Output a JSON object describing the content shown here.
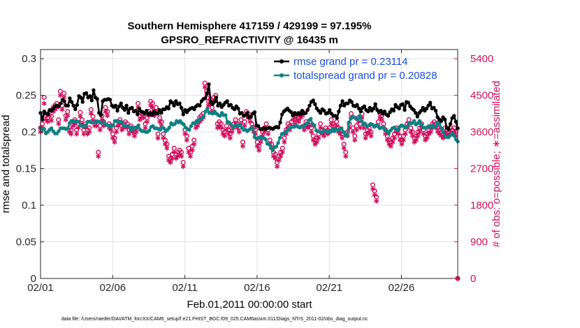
{
  "chart_data": {
    "type": "line",
    "title": "Southern Hemisphere 417159 / 429199 = 97.195%",
    "subtitle": "GPSRO_REFRACTIVITY @ 16435 m",
    "xlabel": "Feb.01,2011 00:00:00 start",
    "ylabel": "rmse and totalspread",
    "y2label": "# of obs: o=possible; ∗=assimilated",
    "footer": "data file: /Users/raeder/DAI/ATM_forcXX/CAM6_setup/f.e21.FHIST_BGC.f09_025.CAM6assim.011/Diags_NTrS_2011-02/obs_diag_output.nc",
    "xlim": [
      1,
      29.9
    ],
    "xticks": [
      1,
      6,
      11,
      16,
      21,
      26
    ],
    "xtick_labels": [
      "02/01",
      "02/06",
      "02/11",
      "02/16",
      "02/21",
      "02/26"
    ],
    "ylim": [
      0,
      0.3125
    ],
    "yticks": [
      0,
      0.05,
      0.1,
      0.15,
      0.2,
      0.25,
      0.3
    ],
    "ytick_labels": [
      "0",
      "0.05",
      "0.1",
      "0.15",
      "0.2",
      "0.25",
      "0.3"
    ],
    "y2lim": [
      0,
      5625
    ],
    "y2ticks": [
      0,
      900,
      1800,
      2700,
      3600,
      4500,
      5400
    ],
    "y2tick_labels": [
      "0",
      "900",
      "1800",
      "2700",
      "3600",
      "4500",
      "5400"
    ],
    "grid": true,
    "legend_position": "top-right",
    "colors": {
      "rmse": "#000000",
      "spread": "#0e8185",
      "obs": "#d0105c",
      "legend_text": "#1a4fe0"
    },
    "series": [
      {
        "name": "rmse grand pr = 0.23114",
        "axis": "left",
        "values": [
          0.226,
          0.217,
          0.228,
          0.225,
          0.224,
          0.23,
          0.229,
          0.232,
          0.235,
          0.236,
          0.235,
          0.239,
          0.244,
          0.242,
          0.236,
          0.236,
          0.246,
          0.241,
          0.236,
          0.231,
          0.237,
          0.249,
          0.247,
          0.241,
          0.252,
          0.253,
          0.247,
          0.249,
          0.243,
          0.257,
          0.247,
          0.245,
          0.226,
          0.223,
          0.242,
          0.244,
          0.244,
          0.245,
          0.244,
          0.236,
          0.234,
          0.236,
          0.229,
          0.235,
          0.239,
          0.233,
          0.23,
          0.236,
          0.226,
          0.232,
          0.233,
          0.228,
          0.229,
          0.224,
          0.232,
          0.228,
          0.227,
          0.225,
          0.229,
          0.224,
          0.226,
          0.223,
          0.228,
          0.225,
          0.225,
          0.23,
          0.226,
          0.231,
          0.231,
          0.234,
          0.232,
          0.242,
          0.24,
          0.236,
          0.242,
          0.238,
          0.239,
          0.233,
          0.224,
          0.23,
          0.227,
          0.23,
          0.232,
          0.233,
          0.231,
          0.235,
          0.237,
          0.236,
          0.242,
          0.245,
          0.246,
          0.253,
          0.265,
          0.241,
          0.238,
          0.241,
          0.247,
          0.236,
          0.239,
          0.234,
          0.237,
          0.24,
          0.242,
          0.236,
          0.237,
          0.233,
          0.231,
          0.235,
          0.232,
          0.225,
          0.226,
          0.222,
          0.223,
          0.226,
          0.22,
          0.221,
          0.225,
          0.227,
          0.209,
          0.208,
          0.204,
          0.204,
          0.205,
          0.204,
          0.205,
          0.206,
          0.205,
          0.204,
          0.206,
          0.207,
          0.206,
          0.213,
          0.224,
          0.228,
          0.23,
          0.232,
          0.229,
          0.227,
          0.223,
          0.226,
          0.224,
          0.226,
          0.224,
          0.229,
          0.225,
          0.226,
          0.23,
          0.236,
          0.241,
          0.243,
          0.238,
          0.232,
          0.229,
          0.226,
          0.231,
          0.229,
          0.225,
          0.226,
          0.23,
          0.225,
          0.222,
          0.222,
          0.219,
          0.228,
          0.236,
          0.242,
          0.236,
          0.239,
          0.239,
          0.243,
          0.241,
          0.236,
          0.235,
          0.237,
          0.232,
          0.228,
          0.233,
          0.235,
          0.23,
          0.228,
          0.233,
          0.229,
          0.232,
          0.238,
          0.23,
          0.227,
          0.229,
          0.225,
          0.228,
          0.224,
          0.222,
          0.227,
          0.231,
          0.229,
          0.237,
          0.234,
          0.232,
          0.237,
          0.238,
          0.23,
          0.241,
          0.24,
          0.235,
          0.232,
          0.23,
          0.226,
          0.221,
          0.226,
          0.229,
          0.233,
          0.229,
          0.232,
          0.236,
          0.24,
          0.232,
          0.233,
          0.229,
          0.22,
          0.217,
          0.215,
          0.22,
          0.217,
          0.206,
          0.204,
          0.211,
          0.219,
          0.222,
          0.214,
          0.205
        ]
      },
      {
        "name": "totalspread grand pr = 0.20828",
        "axis": "left",
        "values": [
          0.205,
          0.204,
          0.204,
          0.198,
          0.2,
          0.203,
          0.205,
          0.201,
          0.198,
          0.198,
          0.201,
          0.205,
          0.205,
          0.205,
          0.204,
          0.205,
          0.212,
          0.215,
          0.215,
          0.215,
          0.214,
          0.214,
          0.209,
          0.208,
          0.207,
          0.209,
          0.214,
          0.214,
          0.213,
          0.213,
          0.213,
          0.214,
          0.214,
          0.213,
          0.213,
          0.213,
          0.21,
          0.209,
          0.207,
          0.209,
          0.209,
          0.215,
          0.215,
          0.214,
          0.214,
          0.213,
          0.208,
          0.208,
          0.208,
          0.207,
          0.203,
          0.206,
          0.205,
          0.206,
          0.209,
          0.203,
          0.201,
          0.201,
          0.2,
          0.2,
          0.202,
          0.207,
          0.208,
          0.205,
          0.205,
          0.204,
          0.203,
          0.206,
          0.205,
          0.201,
          0.203,
          0.206,
          0.212,
          0.21,
          0.211,
          0.215,
          0.213,
          0.215,
          0.212,
          0.21,
          0.206,
          0.204,
          0.203,
          0.208,
          0.212,
          0.212,
          0.215,
          0.215,
          0.218,
          0.219,
          0.221,
          0.228,
          0.232,
          0.226,
          0.226,
          0.225,
          0.228,
          0.225,
          0.223,
          0.222,
          0.226,
          0.223,
          0.223,
          0.214,
          0.213,
          0.21,
          0.206,
          0.208,
          0.209,
          0.209,
          0.21,
          0.206,
          0.203,
          0.203,
          0.201,
          0.203,
          0.205,
          0.205,
          0.193,
          0.191,
          0.192,
          0.193,
          0.191,
          0.192,
          0.19,
          0.184,
          0.183,
          0.178,
          0.175,
          0.179,
          0.18,
          0.185,
          0.192,
          0.197,
          0.198,
          0.2,
          0.202,
          0.205,
          0.206,
          0.207,
          0.207,
          0.209,
          0.207,
          0.206,
          0.208,
          0.207,
          0.21,
          0.212,
          0.216,
          0.218,
          0.211,
          0.209,
          0.202,
          0.201,
          0.2,
          0.199,
          0.202,
          0.202,
          0.2,
          0.201,
          0.2,
          0.204,
          0.201,
          0.204,
          0.202,
          0.204,
          0.205,
          0.2,
          0.195,
          0.195,
          0.213,
          0.218,
          0.221,
          0.22,
          0.218,
          0.218,
          0.222,
          0.215,
          0.21,
          0.211,
          0.208,
          0.209,
          0.211,
          0.21,
          0.207,
          0.209,
          0.208,
          0.205,
          0.206,
          0.206,
          0.203,
          0.201,
          0.198,
          0.202,
          0.205,
          0.206,
          0.204,
          0.203,
          0.207,
          0.209,
          0.208,
          0.206,
          0.207,
          0.212,
          0.212,
          0.212,
          0.215,
          0.21,
          0.212,
          0.215,
          0.21,
          0.206,
          0.206,
          0.206,
          0.208,
          0.207,
          0.209,
          0.206,
          0.208,
          0.213,
          0.211,
          0.205,
          0.2,
          0.194,
          0.193,
          0.193,
          0.196,
          0.198,
          0.195,
          0.19,
          0.187
        ]
      },
      {
        "name": "possible obs",
        "axis": "right",
        "marker": "circle",
        "values": [
          3700,
          3800,
          4450,
          4000,
          3950,
          4100,
          3980,
          4200,
          4250,
          4300,
          3900,
          4600,
          4250,
          4550,
          4000,
          4100,
          3700,
          3650,
          3850,
          3900,
          3650,
          3800,
          4080,
          3900,
          3650,
          3800,
          3650,
          3700,
          4150,
          3980,
          3850,
          3850,
          3100,
          3750,
          4000,
          3850,
          4200,
          4100,
          3800,
          3750,
          3550,
          3450,
          3700,
          3850,
          3900,
          3750,
          3800,
          3850,
          3800,
          3650,
          3750,
          3700,
          3600,
          3700,
          4300,
          4000,
          4050,
          4050,
          3800,
          3950,
          4100,
          4350,
          4300,
          4100,
          4200,
          3550,
          3950,
          3850,
          3550,
          3400,
          3300,
          3000,
          2950,
          3050,
          3200,
          3050,
          3100,
          3150,
          3100,
          2850,
          3650,
          3500,
          3200,
          3100,
          3250,
          3400,
          3800,
          3850,
          3950,
          4000,
          4050,
          4800,
          4600,
          4350,
          4400,
          4200,
          4450,
          4500,
          3800,
          3850,
          3800,
          3650,
          3600,
          3750,
          3650,
          3550,
          3700,
          3800,
          3900,
          3800,
          3700,
          3900,
          3350,
          3850,
          4100,
          4050,
          3950,
          3800,
          3700,
          3650,
          3350,
          3250,
          3450,
          3600,
          3700,
          3800,
          3650,
          3400,
          3300,
          3100,
          3050,
          2850,
          3000,
          3100,
          3200,
          3450,
          3650,
          3800,
          3750,
          3850,
          4000,
          3900,
          4000,
          3950,
          4050,
          4100,
          3750,
          3850,
          3800,
          3850,
          3700,
          3500,
          3400,
          3450,
          3550,
          3800,
          3650,
          3600,
          3700,
          3650,
          3700,
          3900,
          3800,
          3750,
          3850,
          3700,
          3650,
          3550,
          3300,
          3100,
          3600,
          3800,
          4050,
          3700,
          3500,
          3750,
          3950,
          3800,
          4050,
          3800,
          3550,
          3650,
          3700,
          3600,
          2300,
          2150,
          2000,
          3850,
          4050,
          4000,
          3800,
          3650,
          3500,
          3400,
          3350,
          3450,
          3550,
          3700,
          3650,
          3500,
          3400,
          3500,
          3650,
          3800,
          3900,
          3700,
          3600,
          3450,
          3500,
          3600,
          3700,
          3800,
          3650,
          3500,
          3550,
          3650,
          3700,
          3800,
          3850,
          3800,
          3700,
          3650,
          3600,
          3550,
          3700,
          3650,
          3600,
          3700,
          3650,
          3700,
          3600,
          0
        ]
      },
      {
        "name": "assimilated obs",
        "axis": "right",
        "marker": "asterisk",
        "values": [
          3600,
          3700,
          4300,
          3900,
          3850,
          4000,
          3880,
          4100,
          4150,
          4200,
          3800,
          4500,
          4150,
          4450,
          3900,
          4000,
          3600,
          3550,
          3750,
          3800,
          3550,
          3700,
          3980,
          3800,
          3550,
          3700,
          3550,
          3600,
          4050,
          3880,
          3750,
          3750,
          3000,
          3650,
          3900,
          3750,
          4100,
          4000,
          3700,
          3650,
          3450,
          3350,
          3600,
          3750,
          3800,
          3650,
          3700,
          3750,
          3700,
          3550,
          3650,
          3600,
          3500,
          3600,
          4200,
          3900,
          3950,
          3950,
          3700,
          3850,
          4000,
          4250,
          4200,
          4000,
          4100,
          3450,
          3850,
          3750,
          3450,
          3300,
          3200,
          2900,
          2850,
          2950,
          3100,
          2950,
          3000,
          3050,
          3000,
          2750,
          3550,
          3400,
          3100,
          3000,
          3150,
          3300,
          3700,
          3750,
          3850,
          3900,
          3950,
          4700,
          4500,
          4250,
          4300,
          4100,
          4350,
          4400,
          3700,
          3750,
          3700,
          3550,
          3500,
          3650,
          3550,
          3450,
          3600,
          3700,
          3800,
          3700,
          3600,
          3800,
          3250,
          3750,
          4000,
          3950,
          3850,
          3700,
          3600,
          3550,
          3250,
          3150,
          3350,
          3500,
          3600,
          3700,
          3550,
          3300,
          3200,
          3000,
          2950,
          2750,
          2900,
          3000,
          3100,
          3350,
          3550,
          3700,
          3650,
          3750,
          3900,
          3800,
          3900,
          3850,
          3950,
          4000,
          3650,
          3750,
          3700,
          3750,
          3600,
          3400,
          3300,
          3350,
          3450,
          3700,
          3550,
          3500,
          3600,
          3550,
          3600,
          3800,
          3700,
          3650,
          3750,
          3600,
          3550,
          3450,
          3200,
          3000,
          3500,
          3700,
          3950,
          3600,
          3400,
          3650,
          3850,
          3700,
          3950,
          3700,
          3450,
          3550,
          3600,
          3500,
          2200,
          2050,
          1900,
          3750,
          3950,
          3900,
          3700,
          3550,
          3400,
          3300,
          3250,
          3350,
          3450,
          3600,
          3550,
          3400,
          3300,
          3400,
          3550,
          3700,
          3800,
          3600,
          3500,
          3350,
          3400,
          3500,
          3600,
          3700,
          3550,
          3400,
          3450,
          3550,
          3600,
          3700,
          3750,
          3700,
          3600,
          3550,
          3500,
          3450,
          3600,
          3550,
          3500,
          3600,
          3550,
          3600,
          3500,
          0
        ]
      }
    ]
  }
}
